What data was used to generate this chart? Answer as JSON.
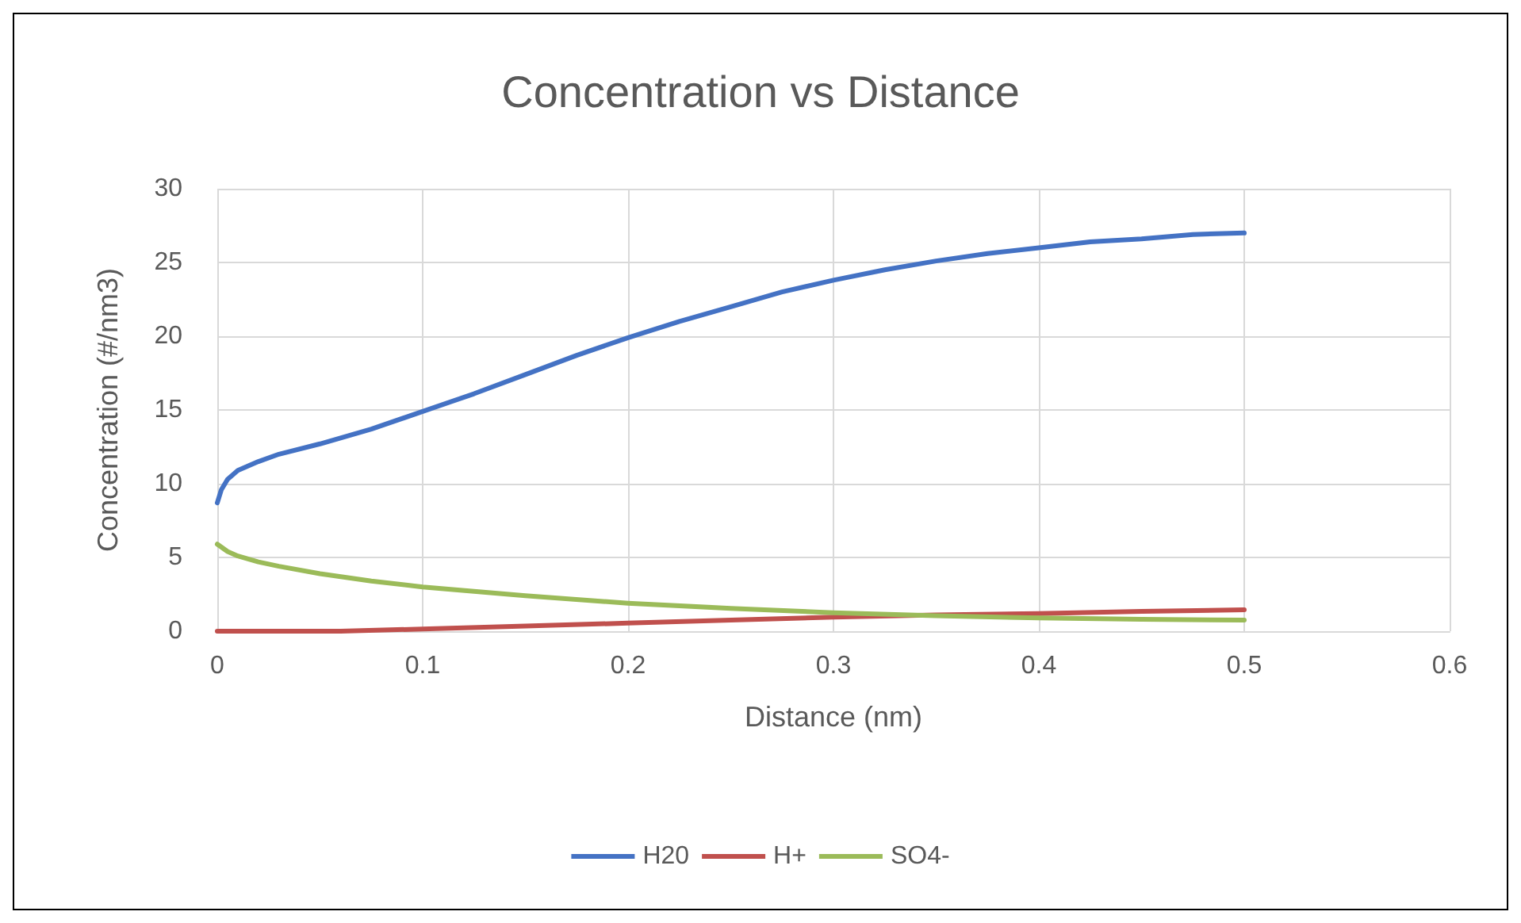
{
  "chart_data": {
    "type": "line",
    "title": "Concentration vs Distance",
    "xlabel": "Distance (nm)",
    "ylabel": "Concentration (#/nm3)",
    "xlim": [
      0,
      0.6
    ],
    "xticks": [
      0,
      0.1,
      0.2,
      0.3,
      0.4,
      0.5,
      0.6
    ],
    "ylim": [
      0,
      30
    ],
    "yticks": [
      0,
      5,
      10,
      15,
      20,
      25,
      30
    ],
    "grid": true,
    "legend": "bottom",
    "marker": "none",
    "series": [
      {
        "name": "H20",
        "color": "#4472c4",
        "x": [
          0,
          0.002,
          0.005,
          0.01,
          0.02,
          0.03,
          0.05,
          0.075,
          0.1,
          0.125,
          0.15,
          0.175,
          0.2,
          0.225,
          0.25,
          0.275,
          0.3,
          0.325,
          0.35,
          0.375,
          0.4,
          0.425,
          0.45,
          0.475,
          0.5
        ],
        "values": [
          8.7,
          9.6,
          10.3,
          10.9,
          11.5,
          12.0,
          12.7,
          13.7,
          14.9,
          16.1,
          17.4,
          18.7,
          19.9,
          21.0,
          22.0,
          23.0,
          23.8,
          24.5,
          25.1,
          25.6,
          26.0,
          26.4,
          26.6,
          26.9,
          27.0
        ]
      },
      {
        "name": "H+",
        "color": "#c0504d",
        "x": [
          0,
          0.03,
          0.06,
          0.1,
          0.15,
          0.2,
          0.25,
          0.3,
          0.35,
          0.4,
          0.45,
          0.5
        ],
        "values": [
          0,
          0,
          0,
          0.15,
          0.35,
          0.55,
          0.75,
          0.95,
          1.1,
          1.2,
          1.35,
          1.45
        ]
      },
      {
        "name": "SO4-",
        "color": "#9bbb59",
        "x": [
          0,
          0.005,
          0.01,
          0.02,
          0.03,
          0.05,
          0.075,
          0.1,
          0.15,
          0.2,
          0.25,
          0.3,
          0.35,
          0.4,
          0.45,
          0.5
        ],
        "values": [
          5.9,
          5.4,
          5.1,
          4.7,
          4.4,
          3.9,
          3.4,
          3.0,
          2.4,
          1.9,
          1.55,
          1.25,
          1.05,
          0.9,
          0.8,
          0.75
        ]
      }
    ]
  }
}
